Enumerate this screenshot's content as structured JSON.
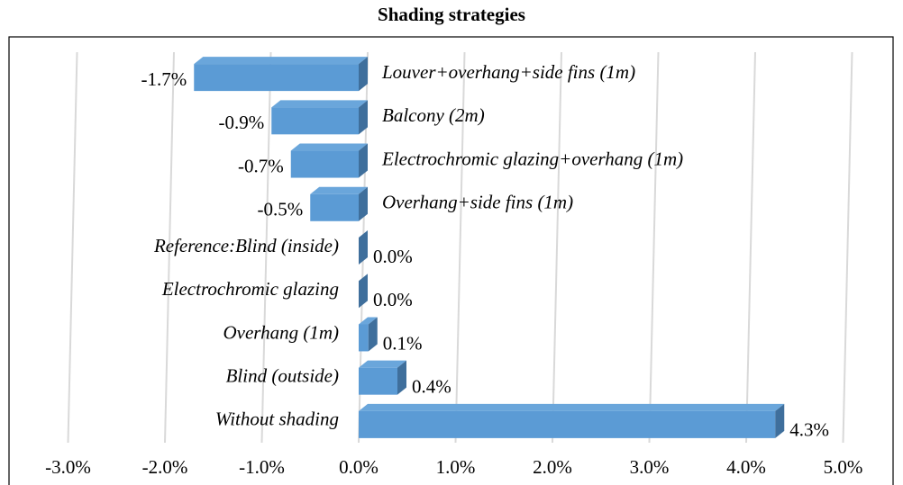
{
  "chart_data": {
    "type": "bar",
    "orientation": "horizontal",
    "title": "Shading strategies",
    "categories": [
      "Louver+overhang+side fins (1m)",
      "Balcony (2m)",
      "Electrochromic glazing+overhang (1m)",
      "Overhang+side fins (1m)",
      "Reference:Blind (inside)",
      "Electrochromic glazing",
      "Overhang (1m)",
      "Blind (outside)",
      "Without shading"
    ],
    "values": [
      -1.7,
      -0.9,
      -0.7,
      -0.5,
      0.0,
      0.0,
      0.1,
      0.4,
      4.3
    ],
    "value_labels": [
      "-1.7%",
      "-0.9%",
      "-0.7%",
      "-0.5%",
      "0.0%",
      "0.0%",
      "0.1%",
      "0.4%",
      "4.3%"
    ],
    "color": "#5b9bd5",
    "xlim": [
      -3,
      5
    ],
    "xticks": [
      {
        "value": -3,
        "label": "-3.0%"
      },
      {
        "value": -2,
        "label": "-2.0%"
      },
      {
        "value": -1,
        "label": "-1.0%"
      },
      {
        "value": 0,
        "label": "0.0%"
      },
      {
        "value": 1,
        "label": "1.0%"
      },
      {
        "value": 2,
        "label": "2.0%"
      },
      {
        "value": 3,
        "label": "3.0%"
      },
      {
        "value": 4,
        "label": "4.0%"
      },
      {
        "value": 5,
        "label": "5.0%"
      }
    ],
    "grid": true
  }
}
